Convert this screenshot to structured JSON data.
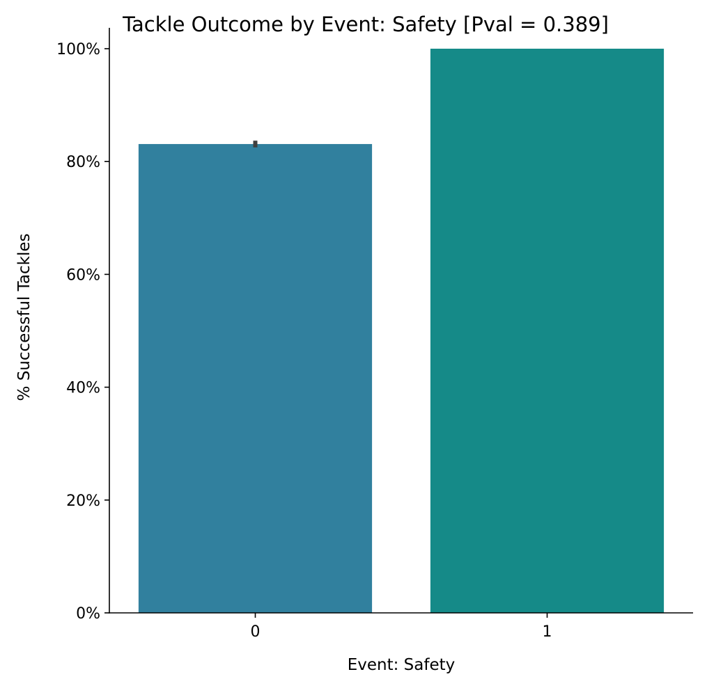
{
  "chart_data": {
    "type": "bar",
    "title": "Tackle Outcome by Event: Safety [Pval = 0.389]",
    "xlabel": "Event: Safety",
    "ylabel": "% Successful Tackles",
    "categories": [
      "0",
      "1"
    ],
    "values": [
      83.1,
      100.0
    ],
    "error_bars": [
      [
        82.5,
        83.7
      ],
      null
    ],
    "colors": [
      "#31809e",
      "#158a88"
    ],
    "ylim": [
      0,
      100
    ],
    "yticks": [
      0,
      20,
      40,
      60,
      80,
      100
    ],
    "ytick_labels": [
      "0%",
      "20%",
      "40%",
      "60%",
      "80%",
      "100%"
    ],
    "grid": false,
    "legend": "none"
  }
}
